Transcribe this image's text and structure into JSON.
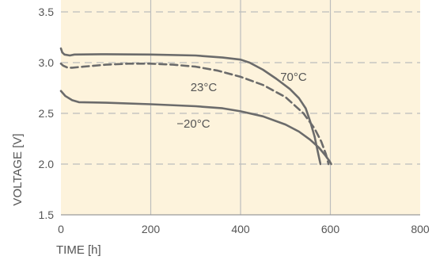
{
  "chart_data": {
    "type": "line",
    "xlabel": "TIME [h]",
    "ylabel": "VOLTAGE [V]",
    "xlim": [
      0,
      800
    ],
    "ylim": [
      1.5,
      3.5
    ],
    "x_ticks": [
      "0",
      "200",
      "400",
      "600",
      "800"
    ],
    "y_ticks": [
      "1.5",
      "2.0",
      "2.5",
      "3.0",
      "3.5"
    ],
    "grid": {
      "vertical": "solid",
      "horizontal": "dashed"
    },
    "colors": {
      "background": "#fdf3dc",
      "grid": "#bdbdbd",
      "line": "#6b6b6b",
      "text": "#555555"
    },
    "series": [
      {
        "name": "70°C",
        "style": "solid",
        "x": [
          0,
          3,
          8,
          20,
          30,
          100,
          200,
          300,
          360,
          400,
          420,
          450,
          480,
          510,
          530,
          545,
          555,
          565,
          573,
          578
        ],
        "y": [
          3.14,
          3.1,
          3.08,
          3.07,
          3.08,
          3.083,
          3.08,
          3.07,
          3.05,
          3.03,
          3.0,
          2.93,
          2.84,
          2.74,
          2.65,
          2.55,
          2.42,
          2.27,
          2.1,
          2.0
        ]
      },
      {
        "name": "23°C",
        "style": "dashed",
        "x": [
          0,
          5,
          15,
          25,
          50,
          100,
          150,
          200,
          250,
          300,
          350,
          400,
          450,
          500,
          540,
          565,
          580,
          590,
          596
        ],
        "y": [
          2.99,
          2.97,
          2.95,
          2.95,
          2.96,
          2.98,
          2.99,
          2.99,
          2.98,
          2.96,
          2.92,
          2.86,
          2.78,
          2.66,
          2.5,
          2.35,
          2.22,
          2.1,
          2.0
        ]
      },
      {
        "name": "−20°C",
        "style": "solid",
        "x": [
          0,
          10,
          25,
          40,
          100,
          200,
          300,
          360,
          400,
          450,
          500,
          530,
          555,
          575,
          588,
          598,
          602
        ],
        "y": [
          2.72,
          2.67,
          2.63,
          2.61,
          2.605,
          2.59,
          2.57,
          2.55,
          2.52,
          2.47,
          2.39,
          2.32,
          2.24,
          2.16,
          2.09,
          2.03,
          2.0
        ]
      }
    ]
  }
}
